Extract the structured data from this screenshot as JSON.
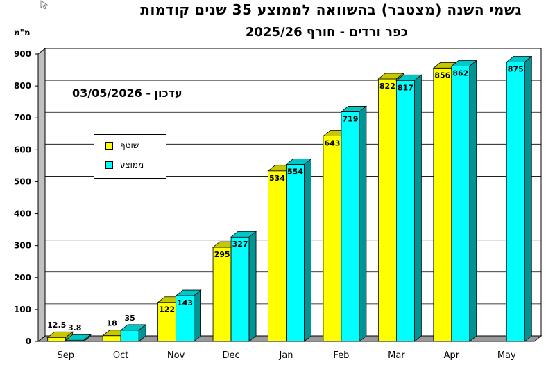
{
  "title": "גשמי השנה (מצטבר) בהשוואה לממוצע 35 שנים קודמות",
  "subtitle": "כפר ורדים - חורף 2025/26",
  "update_note": "עדכון - 03/05/2026",
  "colors": {
    "current": "#ffff00",
    "average": "#00ffff",
    "wall": "#c0c0c0"
  },
  "chart_data": {
    "type": "bar",
    "ylabel": "מ\"מ",
    "ylim": [
      0,
      900
    ],
    "yticks": [
      0,
      100,
      200,
      300,
      400,
      500,
      600,
      700,
      800,
      900
    ],
    "grid": true,
    "legend_position": "left",
    "categories": [
      "Sep",
      "Oct",
      "Nov",
      "Dec",
      "Jan",
      "Feb",
      "Mar",
      "Apr",
      "May"
    ],
    "series": [
      {
        "name": "שוטף",
        "values": [
          12.5,
          18,
          122,
          295,
          534,
          643,
          822,
          856,
          null
        ],
        "labels": [
          "12.5",
          "18",
          "122",
          "295",
          "534",
          "643",
          "822",
          "856",
          ""
        ]
      },
      {
        "name": "ממוצע",
        "values": [
          3.8,
          35,
          143,
          327,
          554,
          719,
          817,
          862,
          875
        ],
        "labels": [
          "3.8",
          "35",
          "143",
          "327",
          "554",
          "719",
          "817",
          "862",
          "875"
        ]
      }
    ]
  }
}
